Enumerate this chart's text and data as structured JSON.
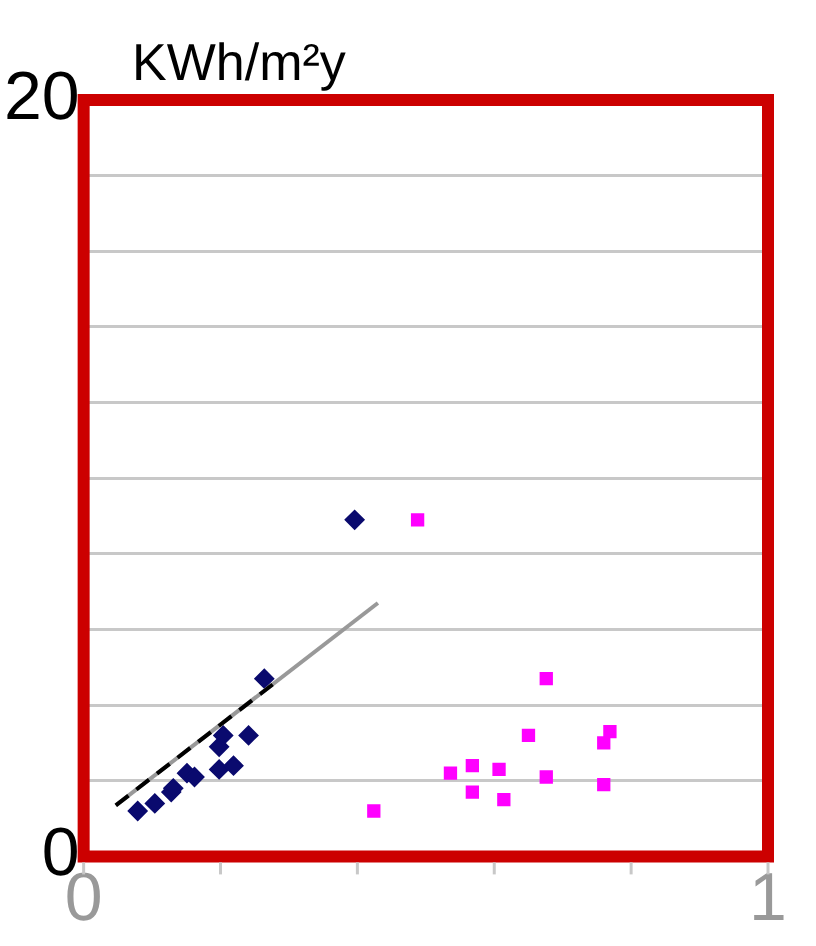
{
  "chart_data": {
    "type": "scatter",
    "ylabel": "KWh/m²y",
    "xlim": [
      0,
      1
    ],
    "xticks": [
      0,
      {
        "value": 0.2,
        "label": null
      },
      {
        "value": 0.4,
        "label": null
      },
      {
        "value": 0.6,
        "label": null
      },
      {
        "value": 0.8,
        "label": null
      },
      1
    ],
    "ylim": [
      0,
      20
    ],
    "yticks": [
      0,
      {
        "value": 2,
        "label": null
      },
      {
        "value": 4,
        "label": null
      },
      {
        "value": 6,
        "label": null
      },
      {
        "value": 8,
        "label": null
      },
      {
        "value": 10,
        "label": null
      },
      {
        "value": 12,
        "label": null
      },
      {
        "value": 14,
        "label": null
      },
      {
        "value": 16,
        "label": null
      },
      {
        "value": 18,
        "label": null
      },
      20
    ],
    "grid": "y",
    "legend": false,
    "series": [
      {
        "type": "scatter",
        "marker": "diamond",
        "color": "#0a0a6e",
        "x": [
          0.079,
          0.104,
          0.128,
          0.131,
          0.151,
          0.162,
          0.198,
          0.219,
          0.198,
          0.204,
          0.241,
          0.264,
          0.396
        ],
        "values": [
          1.2,
          1.4,
          1.7,
          1.8,
          2.2,
          2.1,
          2.3,
          2.4,
          2.9,
          3.2,
          3.2,
          4.7,
          8.9
        ]
      },
      {
        "type": "scatter",
        "marker": "square",
        "color": "#ff00ff",
        "x": [
          0.488,
          0.424,
          0.536,
          0.568,
          0.568,
          0.607,
          0.614,
          0.65,
          0.676,
          0.676,
          0.76,
          0.769,
          0.76
        ],
        "values": [
          8.9,
          1.2,
          2.2,
          2.4,
          1.7,
          2.3,
          1.5,
          3.2,
          4.7,
          2.1,
          3.0,
          3.3,
          1.9
        ]
      },
      {
        "type": "line",
        "marker": "none",
        "line_style": "solid",
        "color": "#999999",
        "x": [
          0.047,
          0.43
        ],
        "values": [
          1.35,
          6.7
        ]
      },
      {
        "type": "line",
        "marker": "none",
        "line_style": "dashed",
        "color": "#000000",
        "x": [
          0.047,
          0.28
        ],
        "values": [
          1.35,
          4.6
        ]
      }
    ]
  }
}
